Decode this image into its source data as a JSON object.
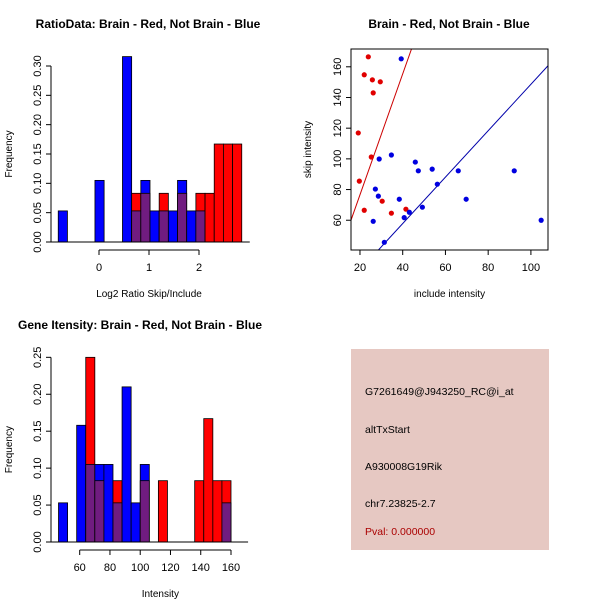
{
  "colors": {
    "brain": "#ff0000",
    "not_brain": "#0000ff",
    "overlap": "#701c80",
    "red_line": "#cc0000",
    "blue_line": "#0000aa",
    "info_bg": "#e6c8c2",
    "pval": "#aa0000"
  },
  "chart_data": [
    {
      "id": "ratio",
      "type": "bar",
      "title": "RatioData: Brain - Red, Not Brain - Blue",
      "xlabel": "Log2 Ratio Skip/Include",
      "ylabel": "Frequency",
      "bin_start": -0.815,
      "bin_width": 0.1835,
      "xticks": [
        "0",
        "1",
        "2"
      ],
      "xtick_values": [
        0,
        1,
        2
      ],
      "yticks": [
        "0.00",
        "0.05",
        "0.10",
        "0.15",
        "0.20",
        "0.25",
        "0.30"
      ],
      "ytick_values": [
        0,
        0.05,
        0.1,
        0.15,
        0.2,
        0.25,
        0.3
      ],
      "ylim": [
        0,
        0.3
      ],
      "series": [
        {
          "name": "Not Brain",
          "color": "blue",
          "values": [
            0.053,
            0,
            0,
            0,
            0.105,
            0,
            0,
            0.316,
            0.053,
            0.105,
            0.053,
            0.053,
            0.053,
            0.105,
            0.053,
            0.053,
            0,
            0,
            0,
            0
          ]
        },
        {
          "name": "Brain",
          "color": "red",
          "values": [
            0,
            0,
            0,
            0,
            0,
            0,
            0,
            0,
            0.083,
            0.083,
            0,
            0.083,
            0,
            0.083,
            0,
            0.083,
            0.083,
            0.167,
            0.167,
            0.167
          ]
        }
      ]
    },
    {
      "id": "scatter",
      "type": "scatter",
      "title": "Brain - Red, Not Brain - Blue",
      "xlabel": "include intensity",
      "ylabel": "skip intensity",
      "xlim": [
        15.8,
        108
      ],
      "ylim": [
        40.6,
        171.6
      ],
      "xticks": [
        "20",
        "40",
        "60",
        "80",
        "100"
      ],
      "xtick_values": [
        20,
        40,
        60,
        80,
        100
      ],
      "yticks": [
        "60",
        "80",
        "100",
        "120",
        "140",
        "160"
      ],
      "ytick_values": [
        60,
        80,
        100,
        120,
        140,
        160
      ],
      "series": [
        {
          "name": "Brain",
          "color": "red",
          "points": [
            [
              23.9,
              166.5
            ],
            [
              22.0,
              154.8
            ],
            [
              25.8,
              151.5
            ],
            [
              29.5,
              150.2
            ],
            [
              26.2,
              143.0
            ],
            [
              19.2,
              116.9
            ],
            [
              25.3,
              101.2
            ],
            [
              19.7,
              85.5
            ],
            [
              30.4,
              72.4
            ],
            [
              22.0,
              66.5
            ],
            [
              34.7,
              64.6
            ],
            [
              41.5,
              67.2
            ]
          ],
          "fit": {
            "slope": 3.94,
            "intercept": -2.2
          }
        },
        {
          "name": "Not Brain",
          "color": "blue",
          "points": [
            [
              39.3,
              165.2
            ],
            [
              29.0,
              99.9
            ],
            [
              34.7,
              102.5
            ],
            [
              45.9,
              97.9
            ],
            [
              47.3,
              92.2
            ],
            [
              53.8,
              93.3
            ],
            [
              66.0,
              92.2
            ],
            [
              92.2,
              92.2
            ],
            [
              27.2,
              80.3
            ],
            [
              56.2,
              83.5
            ],
            [
              28.6,
              75.7
            ],
            [
              38.4,
              73.7
            ],
            [
              69.7,
              73.7
            ],
            [
              49.2,
              68.5
            ],
            [
              40.7,
              61.7
            ],
            [
              43.1,
              65.2
            ],
            [
              26.2,
              59.3
            ],
            [
              104.8,
              60.0
            ],
            [
              31.4,
              45.6
            ]
          ],
          "fit": {
            "slope": 1.513,
            "intercept": -2.7
          }
        }
      ]
    },
    {
      "id": "intensity",
      "type": "bar",
      "title": "Gene Itensity: Brain - Red, Not Brain - Blue",
      "xlabel": "Intensity",
      "ylabel": "Frequency",
      "bin_start": 46,
      "bin_width": 6,
      "xticks": [
        "60",
        "80",
        "100",
        "120",
        "140",
        "160"
      ],
      "xtick_values": [
        60,
        80,
        100,
        120,
        140,
        160
      ],
      "yticks": [
        "0.00",
        "0.05",
        "0.10",
        "0.15",
        "0.20",
        "0.25"
      ],
      "ytick_values": [
        0,
        0.05,
        0.1,
        0.15,
        0.2,
        0.25
      ],
      "ylim": [
        0,
        0.25
      ],
      "series": [
        {
          "name": "Not Brain",
          "color": "blue",
          "values": [
            0.053,
            0,
            0.158,
            0.105,
            0.105,
            0.105,
            0.053,
            0.21,
            0.053,
            0.105,
            0,
            0,
            0,
            0,
            0,
            0,
            0,
            0,
            0.053,
            0
          ]
        },
        {
          "name": "Brain",
          "color": "red",
          "values": [
            0,
            0,
            0,
            0.25,
            0.083,
            0,
            0.083,
            0,
            0,
            0.083,
            0,
            0.083,
            0,
            0,
            0,
            0.083,
            0.167,
            0.083,
            0.083,
            0
          ]
        }
      ]
    }
  ],
  "info": {
    "probe": "G7261649@J943250_RC@i_at",
    "event": "altTxStart",
    "gene": "A930008G19Rik",
    "location": "chr7.23825-2.7",
    "pval": "Pval: 0.000000"
  }
}
